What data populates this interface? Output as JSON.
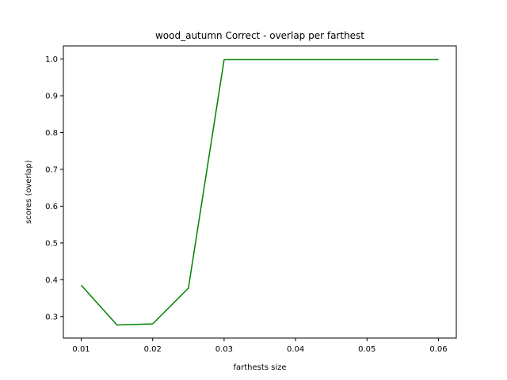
{
  "chart_data": {
    "type": "line",
    "title": "wood_autumn Correct - overlap per farthest",
    "xlabel": "farthests size",
    "ylabel": "scores (overlap)",
    "xlim": [
      0.0075,
      0.0625
    ],
    "ylim": [
      0.2415,
      1.0355
    ],
    "x_ticks": [
      "0.01",
      "0.02",
      "0.03",
      "0.04",
      "0.05",
      "0.06"
    ],
    "y_ticks": [
      "0.3",
      "0.4",
      "0.5",
      "0.6",
      "0.7",
      "0.8",
      "0.9",
      "1.0"
    ],
    "grid": false,
    "series": [
      {
        "color": "#008000",
        "x": [
          0.01,
          0.015,
          0.02,
          0.025,
          0.03,
          0.035,
          0.04,
          0.045,
          0.05,
          0.055,
          0.06
        ],
        "y": [
          0.385,
          0.277,
          0.28,
          0.377,
          0.998,
          0.998,
          0.998,
          0.998,
          0.998,
          0.998,
          0.998
        ]
      }
    ]
  }
}
